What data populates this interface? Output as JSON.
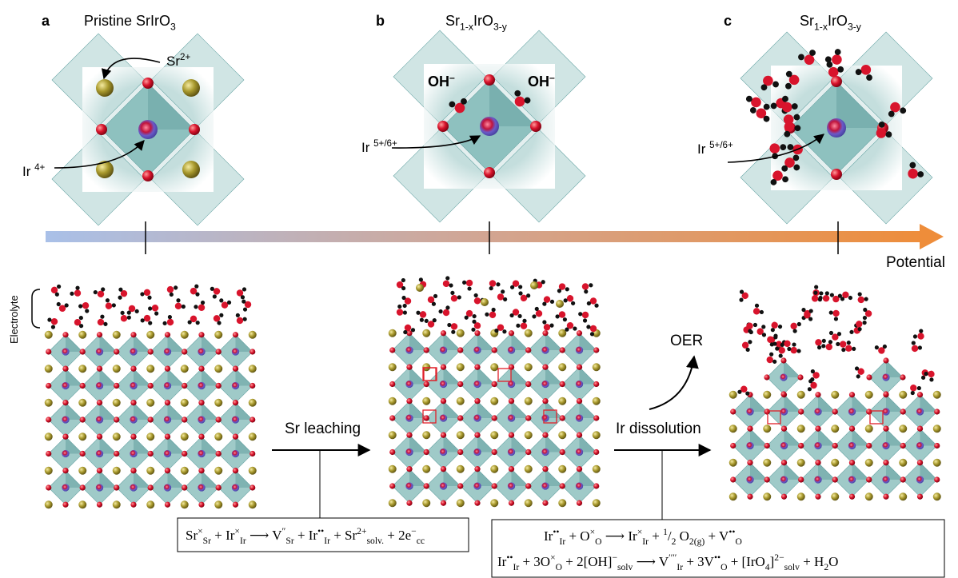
{
  "panels": [
    {
      "label": "a",
      "title": [
        "Pristine SrIrO",
        {
          "sub": "3"
        }
      ]
    },
    {
      "label": "b",
      "title": [
        "Sr",
        {
          "sub": "1-x"
        },
        "IrO",
        {
          "sub": "3-y"
        }
      ]
    },
    {
      "label": "c",
      "title": [
        "Sr",
        {
          "sub": "1-x"
        },
        "IrO",
        {
          "sub": "3-y"
        }
      ]
    }
  ],
  "annotations": {
    "sr_ion": [
      "Sr",
      {
        "sup": "2+"
      }
    ],
    "ir_a": [
      "Ir ",
      {
        "sup": "4+"
      }
    ],
    "oh_left": [
      "OH",
      {
        "sup": "–"
      }
    ],
    "oh_right": [
      "OH",
      {
        "sup": "–"
      }
    ],
    "ir_b": [
      "Ir ",
      {
        "sup": "5+/6+"
      }
    ],
    "ir_c": [
      "Ir ",
      {
        "sup": "5+/6+"
      }
    ]
  },
  "axis_label": "Potential",
  "electrolyte": "Electrolyte",
  "oer": "OER",
  "step_1": "Sr leaching",
  "step_2": "Ir dissolution",
  "equations": [
    [
      "Sr",
      {
        "sup": "×"
      },
      {
        "sub": "Sr"
      },
      " + Ir",
      {
        "sup": "×"
      },
      {
        "sub": "Ir"
      },
      " ⟶ V",
      {
        "sup": "″"
      },
      {
        "sub": "Sr"
      },
      " + Ir",
      {
        "sup": "••"
      },
      {
        "sub": "Ir"
      },
      " + Sr",
      {
        "sup": "2+"
      },
      {
        "sub": "solv."
      },
      " + 2e",
      {
        "sup": "−"
      },
      {
        "sub": "cc"
      }
    ],
    [
      "Ir",
      {
        "sup": "••"
      },
      {
        "sub": "Ir"
      },
      " + O",
      {
        "sup": "×"
      },
      {
        "sub": "O"
      },
      " ⟶ Ir",
      {
        "sup": "×"
      },
      {
        "sub": "Ir"
      },
      " + ",
      {
        "sup": "1"
      },
      "/",
      {
        "sub": "2"
      },
      " O",
      {
        "sub": "2(g)"
      },
      " + V",
      {
        "sup": "••"
      },
      {
        "sub": "O"
      }
    ],
    [
      "Ir",
      {
        "sup": "••"
      },
      {
        "sub": "Ir"
      },
      " + 3O",
      {
        "sup": "×"
      },
      {
        "sub": "O"
      },
      " + 2[OH]",
      {
        "sup": "−"
      },
      {
        "sub": "solv"
      },
      " ⟶ V",
      {
        "sup": "′′′′"
      },
      {
        "sub": "Ir"
      },
      " + 3V",
      {
        "sup": "••"
      },
      {
        "sub": "O"
      },
      " + [IrO",
      {
        "sub": "4"
      },
      "]",
      {
        "sup": "2−"
      },
      {
        "sub": "solv"
      },
      " + H",
      {
        "sub": "2"
      },
      "O"
    ]
  ]
}
